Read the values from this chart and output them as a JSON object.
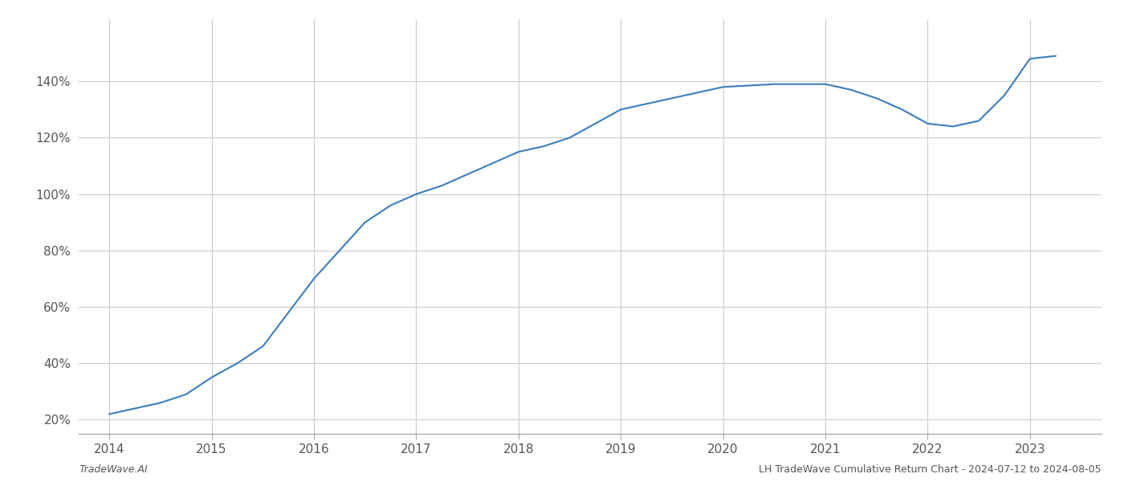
{
  "x": [
    2014.0,
    2014.25,
    2014.5,
    2014.75,
    2015.0,
    2015.25,
    2015.5,
    2015.75,
    2016.0,
    2016.25,
    2016.5,
    2016.75,
    2017.0,
    2017.25,
    2017.5,
    2017.75,
    2018.0,
    2018.25,
    2018.5,
    2018.75,
    2019.0,
    2019.25,
    2019.5,
    2019.75,
    2020.0,
    2020.25,
    2020.5,
    2020.75,
    2021.0,
    2021.25,
    2021.5,
    2021.75,
    2022.0,
    2022.25,
    2022.5,
    2022.75,
    2023.0,
    2023.25
  ],
  "y": [
    22,
    24,
    26,
    29,
    35,
    40,
    46,
    58,
    70,
    80,
    90,
    96,
    100,
    103,
    107,
    111,
    115,
    117,
    120,
    125,
    130,
    132,
    134,
    136,
    138,
    138.5,
    139,
    139,
    139,
    137,
    134,
    130,
    125,
    124,
    126,
    135,
    148,
    149
  ],
  "line_color": "#3a7ebf",
  "line_width": 1.5,
  "background_color": "#ffffff",
  "grid_color": "#cccccc",
  "yticks": [
    20,
    40,
    60,
    80,
    100,
    120,
    140
  ],
  "xticks": [
    2014,
    2015,
    2016,
    2017,
    2018,
    2019,
    2020,
    2021,
    2022,
    2023
  ],
  "xlim": [
    2013.7,
    2023.7
  ],
  "ylim": [
    15,
    162
  ],
  "watermark_left": "TradeWave.AI",
  "watermark_right": "LH TradeWave Cumulative Return Chart - 2024-07-12 to 2024-08-05",
  "tick_label_color": "#555555",
  "spine_color": "#aaaaaa",
  "tick_fontsize": 11,
  "watermark_fontsize": 9
}
